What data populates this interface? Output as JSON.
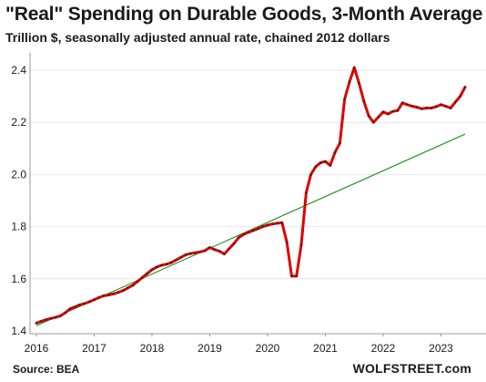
{
  "header": {
    "title": "\"Real\" Spending on Durable Goods, 3-Month Average",
    "subtitle": "Trillion $, seasonally adjusted annual rate, chained 2012 dollars"
  },
  "footer": {
    "source": "Source: BEA",
    "brand": "WOLFSTREET.com"
  },
  "chart_data": {
    "type": "line",
    "title": "\"Real\" Spending on Durable Goods, 3-Month Average",
    "subtitle": "Trillion $, seasonally adjusted annual rate, chained 2012 dollars",
    "xlabel": "",
    "ylabel": "",
    "xlim": [
      2016.0,
      2023.417
    ],
    "ylim": [
      1.4,
      2.45
    ],
    "x_tick_labels": [
      "2016",
      "2017",
      "2018",
      "2019",
      "2020",
      "2021",
      "2022",
      "2023"
    ],
    "y_tick_values": [
      1.4,
      1.6,
      1.8,
      2.0,
      2.2,
      2.4
    ],
    "y_tick_labels": [
      "1.4",
      "1.6",
      "1.8",
      "2.0",
      "2.2",
      "2.4"
    ],
    "grid": "horizontal",
    "legend": "none",
    "series": [
      {
        "color": "#e00000",
        "marker_color": "#2a2a2a",
        "x": [
          2016.0,
          2016.083,
          2016.167,
          2016.25,
          2016.333,
          2016.417,
          2016.5,
          2016.583,
          2016.667,
          2016.75,
          2016.833,
          2016.917,
          2017.0,
          2017.083,
          2017.167,
          2017.25,
          2017.333,
          2017.417,
          2017.5,
          2017.583,
          2017.667,
          2017.75,
          2017.833,
          2017.917,
          2018.0,
          2018.083,
          2018.167,
          2018.25,
          2018.333,
          2018.417,
          2018.5,
          2018.583,
          2018.667,
          2018.75,
          2018.833,
          2018.917,
          2019.0,
          2019.083,
          2019.167,
          2019.25,
          2019.333,
          2019.417,
          2019.5,
          2019.583,
          2019.667,
          2019.75,
          2019.833,
          2019.917,
          2020.0,
          2020.083,
          2020.167,
          2020.25,
          2020.333,
          2020.417,
          2020.5,
          2020.583,
          2020.667,
          2020.75,
          2020.833,
          2020.917,
          2021.0,
          2021.083,
          2021.167,
          2021.25,
          2021.333,
          2021.417,
          2021.5,
          2021.583,
          2021.667,
          2021.75,
          2021.833,
          2021.917,
          2022.0,
          2022.083,
          2022.167,
          2022.25,
          2022.333,
          2022.417,
          2022.5,
          2022.583,
          2022.667,
          2022.75,
          2022.833,
          2022.917,
          2023.0,
          2023.083,
          2023.167,
          2023.25,
          2023.333,
          2023.417
        ],
        "y": [
          1.43,
          1.437,
          1.443,
          1.448,
          1.452,
          1.458,
          1.47,
          1.485,
          1.492,
          1.5,
          1.505,
          1.512,
          1.52,
          1.528,
          1.535,
          1.538,
          1.542,
          1.548,
          1.555,
          1.565,
          1.575,
          1.59,
          1.605,
          1.62,
          1.635,
          1.645,
          1.652,
          1.656,
          1.662,
          1.672,
          1.682,
          1.692,
          1.697,
          1.7,
          1.703,
          1.708,
          1.72,
          1.712,
          1.706,
          1.695,
          1.715,
          1.735,
          1.758,
          1.77,
          1.778,
          1.785,
          1.792,
          1.8,
          1.806,
          1.81,
          1.813,
          1.815,
          1.74,
          1.61,
          1.61,
          1.73,
          1.93,
          2.0,
          2.03,
          2.045,
          2.05,
          2.035,
          2.085,
          2.12,
          2.29,
          2.355,
          2.41,
          2.35,
          2.28,
          2.225,
          2.2,
          2.22,
          2.24,
          2.232,
          2.242,
          2.245,
          2.275,
          2.268,
          2.262,
          2.258,
          2.252,
          2.255,
          2.255,
          2.26,
          2.268,
          2.262,
          2.255,
          2.278,
          2.3,
          2.335
        ]
      },
      {
        "color": "#1a8a1a",
        "x": [
          2016.0,
          2023.417
        ],
        "y": [
          1.42,
          2.155
        ]
      }
    ]
  }
}
